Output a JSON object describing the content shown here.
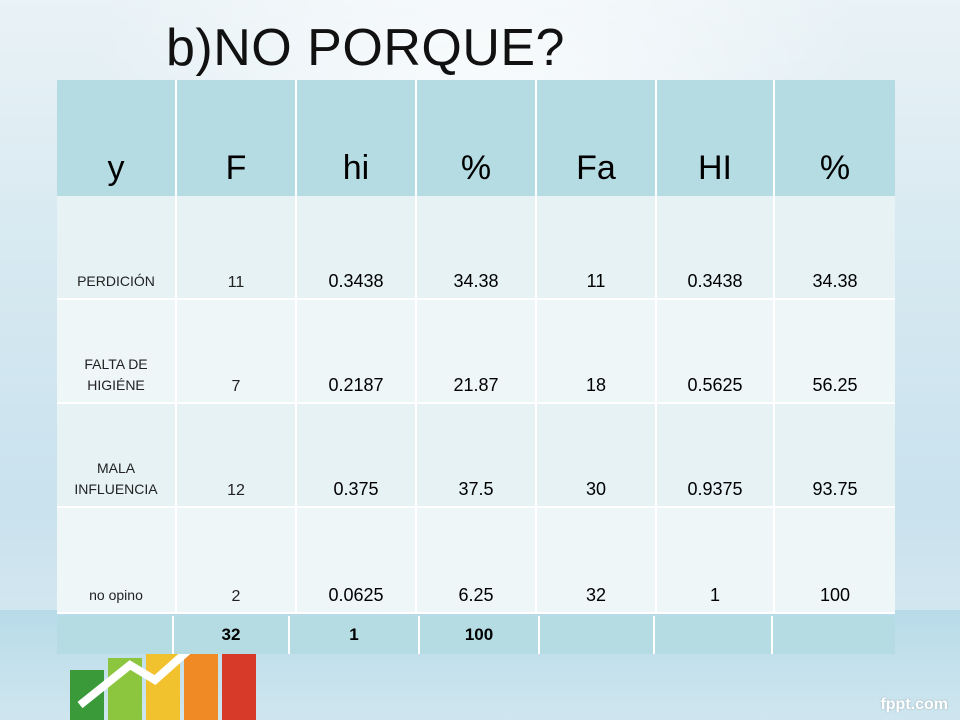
{
  "slide": {
    "title": "b)NO PORQUE?",
    "watermark": "fppt.com"
  },
  "table": {
    "headers": [
      "y",
      "F",
      "hi",
      "%",
      "Fa",
      "HI",
      "%"
    ],
    "rows": [
      [
        "PERDICIÓN",
        "11",
        "0.3438",
        "34.38",
        "11",
        "0.3438",
        "34.38"
      ],
      [
        "FALTA DE HIGIÉNE",
        "7",
        "0.2187",
        "21.87",
        "18",
        "0.5625",
        "56.25"
      ],
      [
        "MALA INFLUENCIA",
        "12",
        "0.375",
        "37.5",
        "30",
        "0.9375",
        "93.75"
      ],
      [
        "no opino",
        "2",
        "0.0625",
        "6.25",
        "32",
        "1",
        "100"
      ]
    ],
    "totals": [
      "",
      "32",
      "1",
      "100",
      "",
      "",
      ""
    ]
  }
}
